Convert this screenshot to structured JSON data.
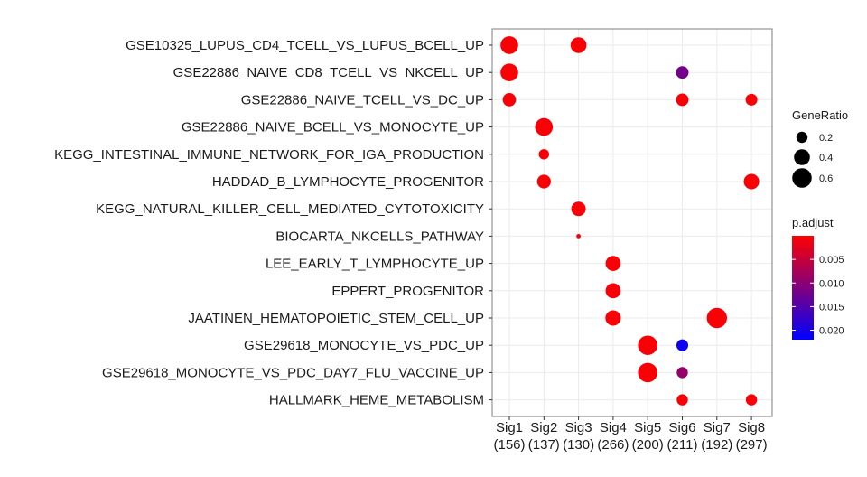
{
  "chart_data": {
    "type": "scatter",
    "title": "",
    "xlabel": "",
    "ylabel": "",
    "x_categories": [
      {
        "name": "Sig1",
        "count": "(156)"
      },
      {
        "name": "Sig2",
        "count": "(137)"
      },
      {
        "name": "Sig3",
        "count": "(130)"
      },
      {
        "name": "Sig4",
        "count": "(266)"
      },
      {
        "name": "Sig5",
        "count": "(200)"
      },
      {
        "name": "Sig6",
        "count": "(211)"
      },
      {
        "name": "Sig7",
        "count": "(192)"
      },
      {
        "name": "Sig8",
        "count": "(297)"
      }
    ],
    "y_categories": [
      "GSE10325_LUPUS_CD4_TCELL_VS_LUPUS_BCELL_UP",
      "GSE22886_NAIVE_CD8_TCELL_VS_NKCELL_UP",
      "GSE22886_NAIVE_TCELL_VS_DC_UP",
      "GSE22886_NAIVE_BCELL_VS_MONOCYTE_UP",
      "KEGG_INTESTINAL_IMMUNE_NETWORK_FOR_IGA_PRODUCTION",
      "HADDAD_B_LYMPHOCYTE_PROGENITOR",
      "KEGG_NATURAL_KILLER_CELL_MEDIATED_CYTOTOXICITY",
      "BIOCARTA_NKCELLS_PATHWAY",
      "LEE_EARLY_T_LYMPHOCYTE_UP",
      "EPPERT_PROGENITOR",
      "JAATINEN_HEMATOPOIETIC_STEM_CELL_UP",
      "GSE29618_MONOCYTE_VS_PDC_UP",
      "GSE29618_MONOCYTE_VS_PDC_DAY7_FLU_VACCINE_UP",
      "HALLMARK_HEME_METABOLISM"
    ],
    "points": [
      {
        "x": "Sig1",
        "y": "GSE10325_LUPUS_CD4_TCELL_VS_LUPUS_BCELL_UP",
        "gene_ratio": 0.5,
        "p_adjust": 0.0005
      },
      {
        "x": "Sig3",
        "y": "GSE10325_LUPUS_CD4_TCELL_VS_LUPUS_BCELL_UP",
        "gene_ratio": 0.4,
        "p_adjust": 0.0005
      },
      {
        "x": "Sig1",
        "y": "GSE22886_NAIVE_CD8_TCELL_VS_NKCELL_UP",
        "gene_ratio": 0.5,
        "p_adjust": 0.0005
      },
      {
        "x": "Sig6",
        "y": "GSE22886_NAIVE_CD8_TCELL_VS_NKCELL_UP",
        "gene_ratio": 0.25,
        "p_adjust": 0.012
      },
      {
        "x": "Sig1",
        "y": "GSE22886_NAIVE_TCELL_VS_DC_UP",
        "gene_ratio": 0.28,
        "p_adjust": 0.0005
      },
      {
        "x": "Sig6",
        "y": "GSE22886_NAIVE_TCELL_VS_DC_UP",
        "gene_ratio": 0.25,
        "p_adjust": 0.0005
      },
      {
        "x": "Sig8",
        "y": "GSE22886_NAIVE_TCELL_VS_DC_UP",
        "gene_ratio": 0.22,
        "p_adjust": 0.0005
      },
      {
        "x": "Sig2",
        "y": "GSE22886_NAIVE_BCELL_VS_MONOCYTE_UP",
        "gene_ratio": 0.5,
        "p_adjust": 0.0005
      },
      {
        "x": "Sig2",
        "y": "KEGG_INTESTINAL_IMMUNE_NETWORK_FOR_IGA_PRODUCTION",
        "gene_ratio": 0.17,
        "p_adjust": 0.0005
      },
      {
        "x": "Sig2",
        "y": "HADDAD_B_LYMPHOCYTE_PROGENITOR",
        "gene_ratio": 0.3,
        "p_adjust": 0.0005
      },
      {
        "x": "Sig8",
        "y": "HADDAD_B_LYMPHOCYTE_PROGENITOR",
        "gene_ratio": 0.38,
        "p_adjust": 0.0005
      },
      {
        "x": "Sig3",
        "y": "KEGG_NATURAL_KILLER_CELL_MEDIATED_CYTOTOXICITY",
        "gene_ratio": 0.33,
        "p_adjust": 0.0005
      },
      {
        "x": "Sig3",
        "y": "BIOCARTA_NKCELLS_PATHWAY",
        "gene_ratio": 0.03,
        "p_adjust": 0.0005
      },
      {
        "x": "Sig4",
        "y": "LEE_EARLY_T_LYMPHOCYTE_UP",
        "gene_ratio": 0.36,
        "p_adjust": 0.0005
      },
      {
        "x": "Sig4",
        "y": "EPPERT_PROGENITOR",
        "gene_ratio": 0.36,
        "p_adjust": 0.0005
      },
      {
        "x": "Sig4",
        "y": "JAATINEN_HEMATOPOIETIC_STEM_CELL_UP",
        "gene_ratio": 0.38,
        "p_adjust": 0.0005
      },
      {
        "x": "Sig7",
        "y": "JAATINEN_HEMATOPOIETIC_STEM_CELL_UP",
        "gene_ratio": 0.65,
        "p_adjust": 0.0005
      },
      {
        "x": "Sig5",
        "y": "GSE29618_MONOCYTE_VS_PDC_UP",
        "gene_ratio": 0.6,
        "p_adjust": 0.0005
      },
      {
        "x": "Sig6",
        "y": "GSE29618_MONOCYTE_VS_PDC_UP",
        "gene_ratio": 0.22,
        "p_adjust": 0.021
      },
      {
        "x": "Sig5",
        "y": "GSE29618_MONOCYTE_VS_PDC_DAY7_FLU_VACCINE_UP",
        "gene_ratio": 0.6,
        "p_adjust": 0.0005
      },
      {
        "x": "Sig6",
        "y": "GSE29618_MONOCYTE_VS_PDC_DAY7_FLU_VACCINE_UP",
        "gene_ratio": 0.2,
        "p_adjust": 0.009
      },
      {
        "x": "Sig6",
        "y": "HALLMARK_HEME_METABOLISM",
        "gene_ratio": 0.2,
        "p_adjust": 0.0005
      },
      {
        "x": "Sig8",
        "y": "HALLMARK_HEME_METABOLISM",
        "gene_ratio": 0.2,
        "p_adjust": 0.0005
      }
    ],
    "size_legend": {
      "title": "GeneRatio",
      "entries": [
        {
          "label": "0.2",
          "value": 0.2
        },
        {
          "label": "0.4",
          "value": 0.4
        },
        {
          "label": "0.6",
          "value": 0.6
        }
      ]
    },
    "color_legend": {
      "title": "p.adjust",
      "range": [
        0.0,
        0.022
      ],
      "ticks": [
        {
          "label": "0.005",
          "value": 0.005
        },
        {
          "label": "0.010",
          "value": 0.01
        },
        {
          "label": "0.015",
          "value": 0.015
        },
        {
          "label": "0.020",
          "value": 0.02
        }
      ],
      "low_color": "#ff0000",
      "high_color": "#0000ff"
    },
    "grid": true,
    "panel_background": "#ffffff",
    "grid_color": "#ebebeb",
    "panel_border_color": "#7f7f7f"
  }
}
